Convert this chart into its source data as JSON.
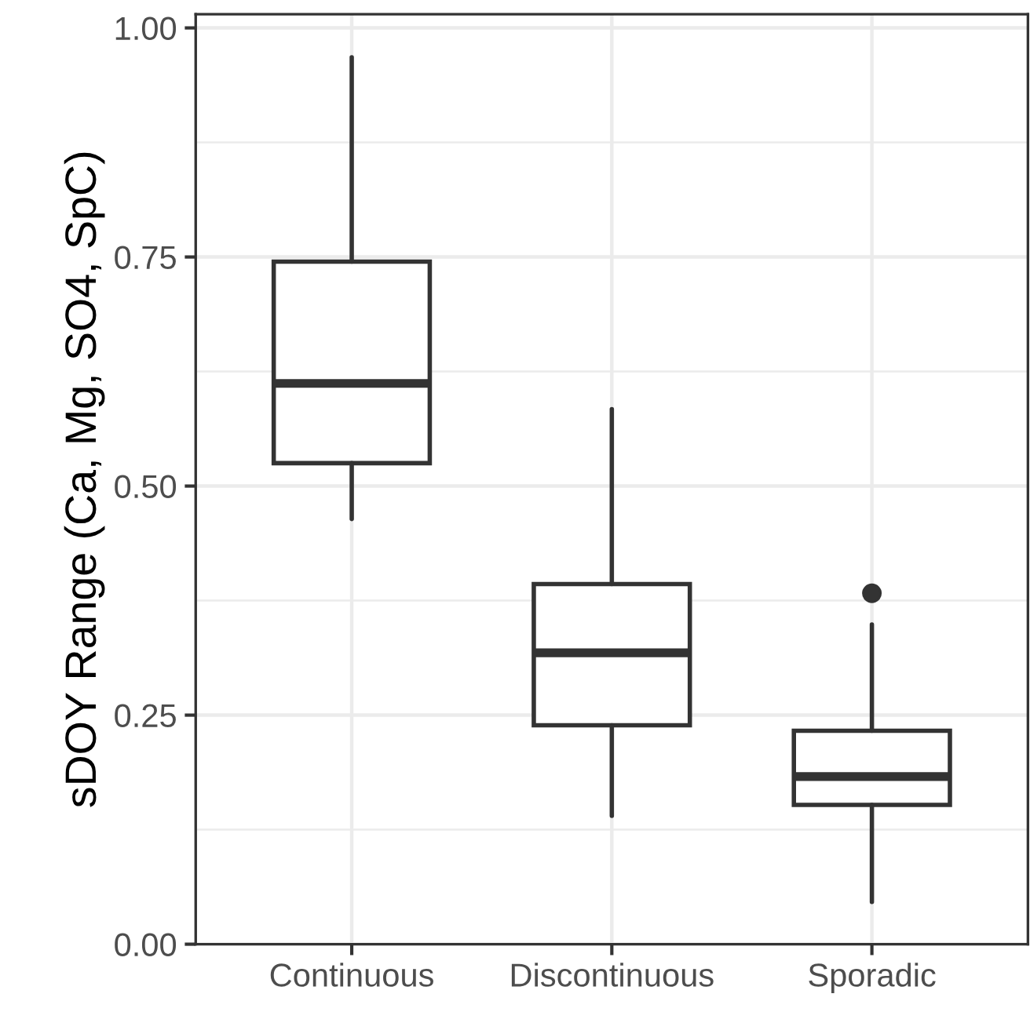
{
  "chart_data": {
    "type": "box",
    "ylabel": "sDOY Range (Ca, Mg, SO4, SpC)",
    "categories": [
      "Continuous",
      "Discontinuous",
      "Sporadic"
    ],
    "boxes": [
      {
        "low": 0.464,
        "q1": 0.525,
        "median": 0.612,
        "q3": 0.745,
        "high": 0.968
      },
      {
        "low": 0.14,
        "q1": 0.239,
        "median": 0.318,
        "q3": 0.393,
        "high": 0.584
      },
      {
        "low": 0.046,
        "q1": 0.152,
        "median": 0.183,
        "q3": 0.233,
        "high": 0.349,
        "outliers": [
          0.383
        ]
      }
    ],
    "color": "#333333",
    "ylim": [
      0,
      1.015
    ],
    "yticks": [
      {
        "value": 0,
        "label": "0.00"
      },
      {
        "value": 0.25,
        "label": "0.25"
      },
      {
        "value": 0.5,
        "label": "0.50"
      },
      {
        "value": 0.75,
        "label": "0.75"
      },
      {
        "value": 1,
        "label": "1.00"
      }
    ],
    "grid": true
  }
}
